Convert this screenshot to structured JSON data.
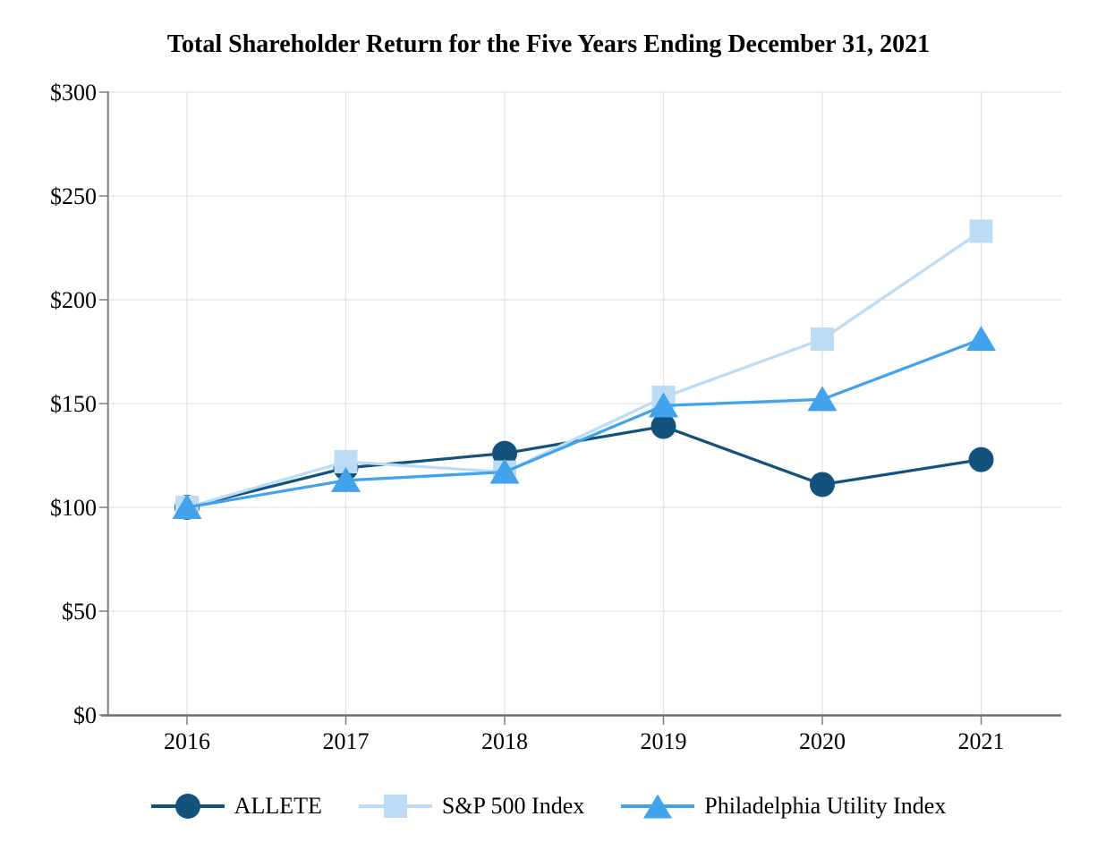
{
  "chart_data": {
    "type": "line",
    "title": "Total Shareholder Return for the Five Years Ending December 31, 2021",
    "xlabel": "",
    "ylabel": "",
    "categories": [
      "2016",
      "2017",
      "2018",
      "2019",
      "2020",
      "2021"
    ],
    "series": [
      {
        "name": "ALLETE",
        "marker": "circle",
        "color": "#14527E",
        "values": [
          100,
          119,
          126,
          139,
          111,
          123
        ]
      },
      {
        "name": "S&P 500 Index",
        "marker": "square",
        "color": "#BCDCF5",
        "values": [
          100,
          122,
          117,
          153,
          181,
          233
        ]
      },
      {
        "name": "Philadelphia Utility Index",
        "marker": "triangle",
        "color": "#42A2EC",
        "values": [
          100,
          113,
          117,
          149,
          152,
          181
        ]
      }
    ],
    "y_axis": {
      "min": 0,
      "max": 300,
      "step": 50,
      "tick_labels": [
        "$0",
        "$50",
        "$100",
        "$150",
        "$200",
        "$250",
        "$300"
      ]
    },
    "grid": true,
    "legend_position": "bottom",
    "style_colors": {
      "gridline": "#E2E2E2",
      "axis_line": "#7F7F7F",
      "x_axis_line": "#6E6E6E",
      "tick": "#7F7F7F",
      "text": "#000000",
      "background": "#FFFFFF"
    }
  }
}
